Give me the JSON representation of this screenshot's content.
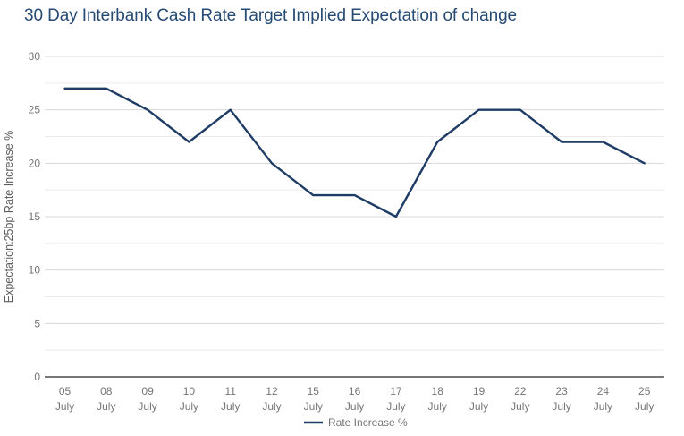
{
  "title": "30 Day Interbank Cash Rate Target Implied Expectation of change",
  "colors": {
    "title": "#254a73",
    "line": "#1f3c66",
    "tick_label": "#757575",
    "y_axis_title": "#5c5c5c",
    "axis_line": "#4a4a4a",
    "grid_major": "#d8d8d8",
    "grid_minor": "#ebebeb",
    "background": "#ffffff"
  },
  "chart_data": {
    "type": "line",
    "title": "30 Day Interbank Cash Rate Target Implied Expectation of change",
    "categories": [
      {
        "line1": "05",
        "line2": "July"
      },
      {
        "line1": "08",
        "line2": "July"
      },
      {
        "line1": "09",
        "line2": "July"
      },
      {
        "line1": "10",
        "line2": "July"
      },
      {
        "line1": "11",
        "line2": "July"
      },
      {
        "line1": "12",
        "line2": "July"
      },
      {
        "line1": "15",
        "line2": "July"
      },
      {
        "line1": "16",
        "line2": "July"
      },
      {
        "line1": "17",
        "line2": "July"
      },
      {
        "line1": "18",
        "line2": "July"
      },
      {
        "line1": "19",
        "line2": "July"
      },
      {
        "line1": "22",
        "line2": "July"
      },
      {
        "line1": "23",
        "line2": "July"
      },
      {
        "line1": "24",
        "line2": "July"
      },
      {
        "line1": "25",
        "line2": "July"
      }
    ],
    "series": [
      {
        "name": "Rate Increase %",
        "values": [
          27,
          27,
          25,
          22,
          25,
          20,
          17,
          17,
          15,
          22,
          25,
          25,
          22,
          22,
          20
        ]
      }
    ],
    "xlabel": "",
    "ylabel": "Expectation:25bp Rate Increase %",
    "ylim": [
      0,
      30
    ],
    "y_ticks": [
      0,
      5,
      10,
      15,
      20,
      25,
      30
    ],
    "minor_grid_step": 2.5,
    "grid": true,
    "legend": {
      "position": "bottom-center",
      "items": [
        {
          "label": "Rate Increase %"
        }
      ]
    }
  }
}
